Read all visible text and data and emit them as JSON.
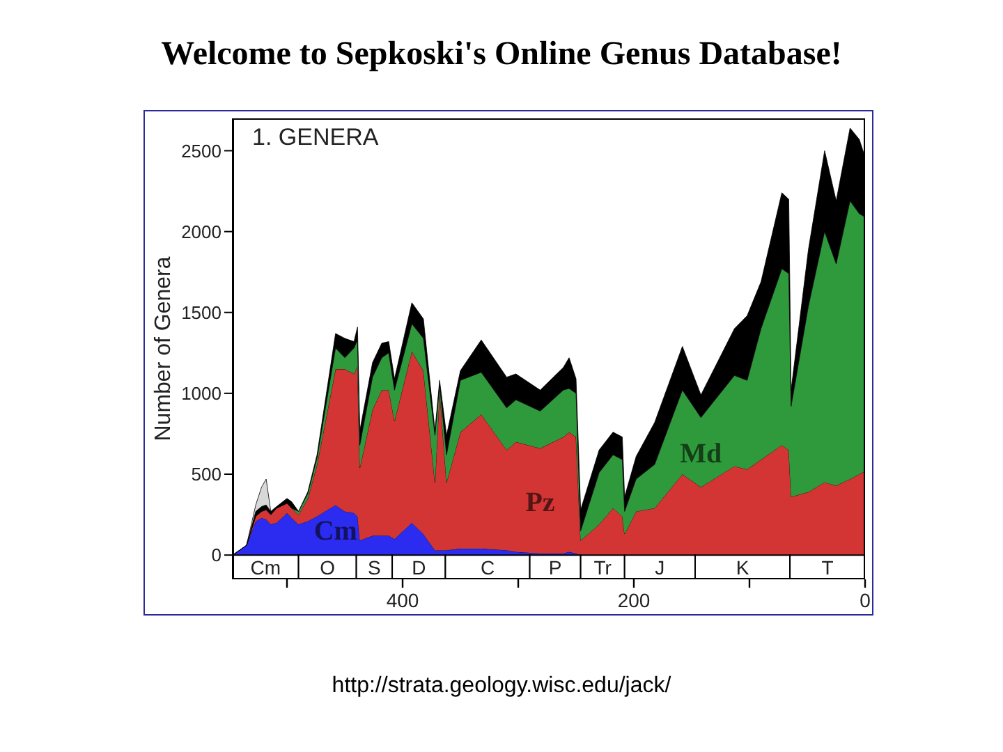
{
  "chart_data": {
    "type": "area",
    "stacked": true,
    "title": "Welcome to Sepkoski's Online Genus Database!",
    "ylabel": "Number of Genera",
    "annotations": [
      "1. GENERA",
      "http://strata.geology.wisc.edu/jack/"
    ],
    "x": [
      547,
      535,
      527,
      522,
      518,
      514,
      509,
      500,
      496,
      490,
      482,
      474,
      458,
      450,
      442,
      439,
      437,
      426,
      418,
      412,
      407,
      392,
      382,
      372,
      368,
      362,
      350,
      332,
      310,
      302,
      281,
      261,
      256,
      250,
      246,
      230,
      218,
      210,
      208,
      198,
      182,
      158,
      142,
      113,
      102,
      90,
      72,
      66,
      64,
      49,
      35,
      25,
      13,
      5,
      0
    ],
    "series": [
      {
        "name": "Cm",
        "color": "#2c2cf0",
        "values": [
          0,
          60,
          210,
          230,
          220,
          190,
          200,
          260,
          230,
          190,
          210,
          240,
          310,
          270,
          260,
          240,
          90,
          120,
          120,
          120,
          100,
          200,
          130,
          30,
          30,
          30,
          40,
          40,
          30,
          20,
          10,
          10,
          20,
          10,
          0,
          0,
          0,
          0,
          0,
          0,
          0,
          0,
          0,
          0,
          0,
          0,
          0,
          0,
          0,
          0,
          0,
          0,
          0,
          0,
          0
        ]
      },
      {
        "name": "Pz",
        "color": "#d33535",
        "values": [
          0,
          0,
          30,
          40,
          60,
          60,
          90,
          60,
          60,
          60,
          140,
          320,
          840,
          880,
          860,
          930,
          450,
          780,
          900,
          900,
          730,
          1060,
          1010,
          420,
          990,
          420,
          720,
          830,
          620,
          680,
          650,
          720,
          740,
          720,
          90,
          190,
          290,
          240,
          130,
          270,
          290,
          500,
          420,
          550,
          530,
          590,
          680,
          650,
          360,
          390,
          450,
          430,
          470,
          500,
          520
        ]
      },
      {
        "name": "Md",
        "color": "#2f9a3c",
        "values": [
          0,
          0,
          0,
          0,
          0,
          0,
          0,
          0,
          0,
          20,
          30,
          40,
          130,
          70,
          160,
          160,
          140,
          200,
          200,
          230,
          190,
          170,
          200,
          290,
          30,
          170,
          320,
          260,
          260,
          260,
          230,
          290,
          270,
          270,
          60,
          320,
          330,
          350,
          140,
          200,
          270,
          520,
          430,
          560,
          550,
          810,
          1090,
          1090,
          560,
          1150,
          1550,
          1370,
          1720,
          1610,
          1570
        ]
      },
      {
        "color": "#000000",
        "values": [
          0,
          0,
          30,
          30,
          30,
          20,
          10,
          30,
          40,
          0,
          10,
          20,
          90,
          120,
          40,
          80,
          90,
          90,
          90,
          70,
          70,
          130,
          120,
          30,
          30,
          120,
          60,
          200,
          190,
          160,
          130,
          140,
          190,
          90,
          130,
          140,
          140,
          140,
          90,
          140,
          260,
          270,
          140,
          290,
          400,
          290,
          470,
          460,
          100,
          350,
          500,
          390,
          450,
          460,
          370
        ]
      },
      {
        "color": "#d8d8d8",
        "values": [
          null,
          0,
          40,
          120,
          160,
          0,
          null,
          null,
          null,
          null,
          null,
          null,
          null,
          null,
          null,
          null,
          null,
          null,
          null,
          null,
          null,
          null,
          null,
          null,
          null,
          null,
          null,
          null,
          null,
          null,
          null,
          null,
          null,
          null,
          null,
          null,
          null,
          null,
          null,
          null,
          null,
          null,
          null,
          null,
          null,
          null,
          null,
          null,
          null,
          null,
          null,
          null,
          null,
          null,
          null
        ]
      }
    ],
    "xlim": [
      547,
      0
    ],
    "xticks": [
      {
        "value": 500,
        "label": null
      },
      400,
      {
        "value": 300,
        "label": null
      },
      200,
      {
        "value": 100,
        "label": null
      },
      0
    ],
    "ylim": [
      -150,
      2700
    ],
    "yticks": [
      0,
      500,
      1000,
      1500,
      2000,
      2500
    ],
    "bands": [
      {
        "axis": "x",
        "from": 547,
        "to": 490,
        "label": "Cm",
        "color": "#ffffff"
      },
      {
        "axis": "x",
        "from": 490,
        "to": 440,
        "label": "O",
        "color": "#ffffff"
      },
      {
        "axis": "x",
        "from": 440,
        "to": 409,
        "label": "S",
        "color": "#ffffff"
      },
      {
        "axis": "x",
        "from": 409,
        "to": 363,
        "label": "D",
        "color": "#ffffff"
      },
      {
        "axis": "x",
        "from": 363,
        "to": 290,
        "label": "C",
        "color": "#ffffff"
      },
      {
        "axis": "x",
        "from": 290,
        "to": 246,
        "label": "P",
        "color": "#ffffff"
      },
      {
        "axis": "x",
        "from": 246,
        "to": 208,
        "label": "Tr",
        "color": "#ffffff"
      },
      {
        "axis": "x",
        "from": 208,
        "to": 147,
        "label": "J",
        "color": "#ffffff"
      },
      {
        "axis": "x",
        "from": 147,
        "to": 65,
        "label": "K",
        "color": "#ffffff"
      },
      {
        "axis": "x",
        "from": 65,
        "to": 0,
        "label": "T",
        "color": "#ffffff"
      }
    ]
  }
}
